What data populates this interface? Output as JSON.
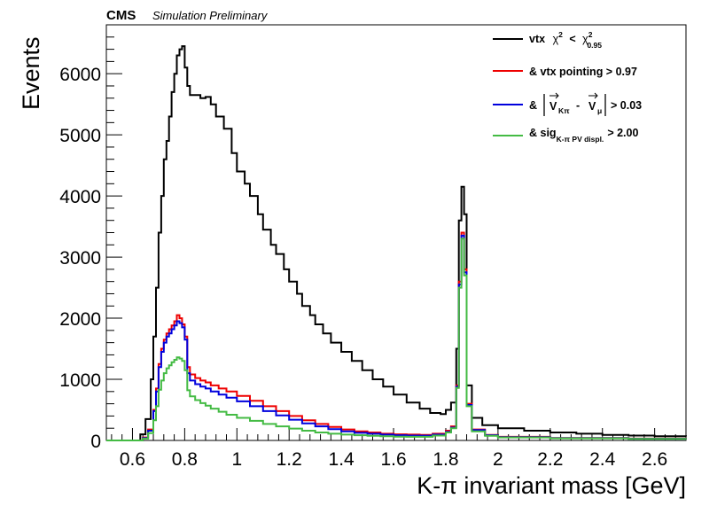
{
  "header": {
    "experiment": "CMS",
    "status": "Simulation Preliminary"
  },
  "chart_data": {
    "type": "histogram",
    "xlabel": "K-π invariant mass [GeV]",
    "ylabel": "Events",
    "xlim": [
      0.5,
      2.72
    ],
    "ylim": [
      0,
      6800
    ],
    "x_ticks": [
      "0.6",
      "0.8",
      "1",
      "1.2",
      "1.4",
      "1.6",
      "1.8",
      "2",
      "2.2",
      "2.4",
      "2.6"
    ],
    "y_ticks": [
      "0",
      "1000",
      "2000",
      "3000",
      "4000",
      "5000",
      "6000"
    ],
    "legend_position": "top-right",
    "legend": {
      "entry1": {
        "prefix": "vtx",
        "chi_sym": "χ",
        "sup": "2",
        "lt": "<",
        "sub": "0.95"
      },
      "entry2": {
        "text": "& vtx pointing > 0.97"
      },
      "entry3": {
        "amp": "&",
        "va": "V",
        "sub_a": "Kπ",
        "minus": "-",
        "vb": "V",
        "sub_b": "μ",
        "rest": "> 0.03"
      },
      "entry4": {
        "prefix": "& sig",
        "sub": "K-π PV displ.",
        "rest": "> 2.00"
      }
    },
    "series": [
      {
        "color": "#000000",
        "points": [
          [
            0.5,
            0
          ],
          [
            0.62,
            0
          ],
          [
            0.63,
            100
          ],
          [
            0.65,
            350
          ],
          [
            0.67,
            1000
          ],
          [
            0.68,
            1700
          ],
          [
            0.69,
            2500
          ],
          [
            0.7,
            3400
          ],
          [
            0.71,
            4000
          ],
          [
            0.72,
            4600
          ],
          [
            0.73,
            4900
          ],
          [
            0.74,
            5300
          ],
          [
            0.75,
            5700
          ],
          [
            0.76,
            6000
          ],
          [
            0.77,
            6300
          ],
          [
            0.78,
            6400
          ],
          [
            0.79,
            6450
          ],
          [
            0.8,
            6100
          ],
          [
            0.81,
            5800
          ],
          [
            0.82,
            5650
          ],
          [
            0.84,
            5650
          ],
          [
            0.86,
            5600
          ],
          [
            0.88,
            5620
          ],
          [
            0.9,
            5500
          ],
          [
            0.92,
            5300
          ],
          [
            0.95,
            5100
          ],
          [
            0.98,
            4700
          ],
          [
            1.0,
            4400
          ],
          [
            1.03,
            4200
          ],
          [
            1.05,
            4000
          ],
          [
            1.08,
            3700
          ],
          [
            1.1,
            3450
          ],
          [
            1.13,
            3200
          ],
          [
            1.15,
            3050
          ],
          [
            1.18,
            2800
          ],
          [
            1.2,
            2600
          ],
          [
            1.23,
            2400
          ],
          [
            1.25,
            2200
          ],
          [
            1.28,
            2050
          ],
          [
            1.3,
            1900
          ],
          [
            1.33,
            1750
          ],
          [
            1.36,
            1600
          ],
          [
            1.4,
            1450
          ],
          [
            1.44,
            1300
          ],
          [
            1.48,
            1150
          ],
          [
            1.52,
            1000
          ],
          [
            1.56,
            880
          ],
          [
            1.6,
            750
          ],
          [
            1.65,
            620
          ],
          [
            1.7,
            520
          ],
          [
            1.74,
            450
          ],
          [
            1.78,
            430
          ],
          [
            1.8,
            500
          ],
          [
            1.82,
            620
          ],
          [
            1.84,
            1500
          ],
          [
            1.85,
            3600
          ],
          [
            1.86,
            4150
          ],
          [
            1.87,
            3700
          ],
          [
            1.88,
            900
          ],
          [
            1.9,
            370
          ],
          [
            1.94,
            250
          ],
          [
            2.0,
            200
          ],
          [
            2.1,
            160
          ],
          [
            2.2,
            130
          ],
          [
            2.3,
            110
          ],
          [
            2.4,
            90
          ],
          [
            2.5,
            80
          ],
          [
            2.6,
            70
          ],
          [
            2.72,
            65
          ]
        ]
      },
      {
        "color": "#ee0000",
        "points": [
          [
            0.5,
            0
          ],
          [
            0.63,
            0
          ],
          [
            0.64,
            50
          ],
          [
            0.66,
            180
          ],
          [
            0.68,
            500
          ],
          [
            0.69,
            850
          ],
          [
            0.7,
            1250
          ],
          [
            0.71,
            1500
          ],
          [
            0.72,
            1650
          ],
          [
            0.73,
            1750
          ],
          [
            0.74,
            1820
          ],
          [
            0.75,
            1880
          ],
          [
            0.76,
            1950
          ],
          [
            0.77,
            2050
          ],
          [
            0.78,
            2000
          ],
          [
            0.79,
            1900
          ],
          [
            0.8,
            1700
          ],
          [
            0.81,
            1200
          ],
          [
            0.82,
            1080
          ],
          [
            0.84,
            1020
          ],
          [
            0.86,
            980
          ],
          [
            0.88,
            950
          ],
          [
            0.9,
            900
          ],
          [
            0.93,
            850
          ],
          [
            0.96,
            800
          ],
          [
            1.0,
            730
          ],
          [
            1.05,
            650
          ],
          [
            1.1,
            560
          ],
          [
            1.15,
            480
          ],
          [
            1.2,
            400
          ],
          [
            1.25,
            330
          ],
          [
            1.3,
            270
          ],
          [
            1.35,
            220
          ],
          [
            1.4,
            180
          ],
          [
            1.45,
            150
          ],
          [
            1.5,
            130
          ],
          [
            1.55,
            110
          ],
          [
            1.6,
            100
          ],
          [
            1.65,
            95
          ],
          [
            1.7,
            90
          ],
          [
            1.75,
            110
          ],
          [
            1.8,
            160
          ],
          [
            1.82,
            230
          ],
          [
            1.84,
            900
          ],
          [
            1.85,
            2600
          ],
          [
            1.86,
            3400
          ],
          [
            1.87,
            2800
          ],
          [
            1.88,
            600
          ],
          [
            1.9,
            180
          ],
          [
            1.95,
            90
          ],
          [
            2.0,
            60
          ],
          [
            2.2,
            40
          ],
          [
            2.5,
            30
          ],
          [
            2.72,
            25
          ]
        ]
      },
      {
        "color": "#0000dd",
        "points": [
          [
            0.5,
            0
          ],
          [
            0.63,
            0
          ],
          [
            0.64,
            40
          ],
          [
            0.66,
            160
          ],
          [
            0.68,
            480
          ],
          [
            0.69,
            800
          ],
          [
            0.7,
            1200
          ],
          [
            0.71,
            1450
          ],
          [
            0.72,
            1600
          ],
          [
            0.73,
            1700
          ],
          [
            0.74,
            1750
          ],
          [
            0.75,
            1820
          ],
          [
            0.76,
            1880
          ],
          [
            0.77,
            1950
          ],
          [
            0.78,
            1920
          ],
          [
            0.79,
            1850
          ],
          [
            0.8,
            1650
          ],
          [
            0.81,
            1100
          ],
          [
            0.82,
            980
          ],
          [
            0.84,
            920
          ],
          [
            0.86,
            880
          ],
          [
            0.88,
            850
          ],
          [
            0.9,
            800
          ],
          [
            0.93,
            750
          ],
          [
            0.96,
            700
          ],
          [
            1.0,
            640
          ],
          [
            1.05,
            560
          ],
          [
            1.1,
            480
          ],
          [
            1.15,
            410
          ],
          [
            1.2,
            340
          ],
          [
            1.25,
            280
          ],
          [
            1.3,
            230
          ],
          [
            1.35,
            185
          ],
          [
            1.4,
            150
          ],
          [
            1.45,
            125
          ],
          [
            1.5,
            110
          ],
          [
            1.55,
            95
          ],
          [
            1.6,
            85
          ],
          [
            1.65,
            80
          ],
          [
            1.7,
            78
          ],
          [
            1.75,
            95
          ],
          [
            1.8,
            140
          ],
          [
            1.82,
            210
          ],
          [
            1.84,
            880
          ],
          [
            1.85,
            2550
          ],
          [
            1.86,
            3350
          ],
          [
            1.87,
            2750
          ],
          [
            1.88,
            580
          ],
          [
            1.9,
            170
          ],
          [
            1.95,
            85
          ],
          [
            2.0,
            55
          ],
          [
            2.2,
            38
          ],
          [
            2.5,
            28
          ],
          [
            2.72,
            22
          ]
        ]
      },
      {
        "color": "#44bb44",
        "points": [
          [
            0.5,
            0
          ],
          [
            0.63,
            0
          ],
          [
            0.64,
            30
          ],
          [
            0.66,
            120
          ],
          [
            0.68,
            330
          ],
          [
            0.69,
            560
          ],
          [
            0.7,
            830
          ],
          [
            0.71,
            980
          ],
          [
            0.72,
            1100
          ],
          [
            0.73,
            1180
          ],
          [
            0.74,
            1230
          ],
          [
            0.75,
            1280
          ],
          [
            0.76,
            1320
          ],
          [
            0.77,
            1360
          ],
          [
            0.78,
            1340
          ],
          [
            0.79,
            1300
          ],
          [
            0.8,
            1150
          ],
          [
            0.81,
            820
          ],
          [
            0.82,
            720
          ],
          [
            0.84,
            660
          ],
          [
            0.86,
            610
          ],
          [
            0.88,
            570
          ],
          [
            0.9,
            520
          ],
          [
            0.93,
            470
          ],
          [
            0.96,
            420
          ],
          [
            1.0,
            370
          ],
          [
            1.05,
            320
          ],
          [
            1.1,
            270
          ],
          [
            1.15,
            230
          ],
          [
            1.2,
            195
          ],
          [
            1.25,
            160
          ],
          [
            1.3,
            130
          ],
          [
            1.35,
            110
          ],
          [
            1.4,
            95
          ],
          [
            1.45,
            85
          ],
          [
            1.5,
            75
          ],
          [
            1.55,
            68
          ],
          [
            1.6,
            62
          ],
          [
            1.65,
            60
          ],
          [
            1.7,
            60
          ],
          [
            1.75,
            80
          ],
          [
            1.8,
            130
          ],
          [
            1.82,
            200
          ],
          [
            1.84,
            860
          ],
          [
            1.85,
            2500
          ],
          [
            1.86,
            3300
          ],
          [
            1.87,
            2700
          ],
          [
            1.88,
            560
          ],
          [
            1.9,
            150
          ],
          [
            1.95,
            75
          ],
          [
            2.0,
            50
          ],
          [
            2.2,
            35
          ],
          [
            2.5,
            25
          ],
          [
            2.72,
            20
          ]
        ]
      }
    ]
  }
}
